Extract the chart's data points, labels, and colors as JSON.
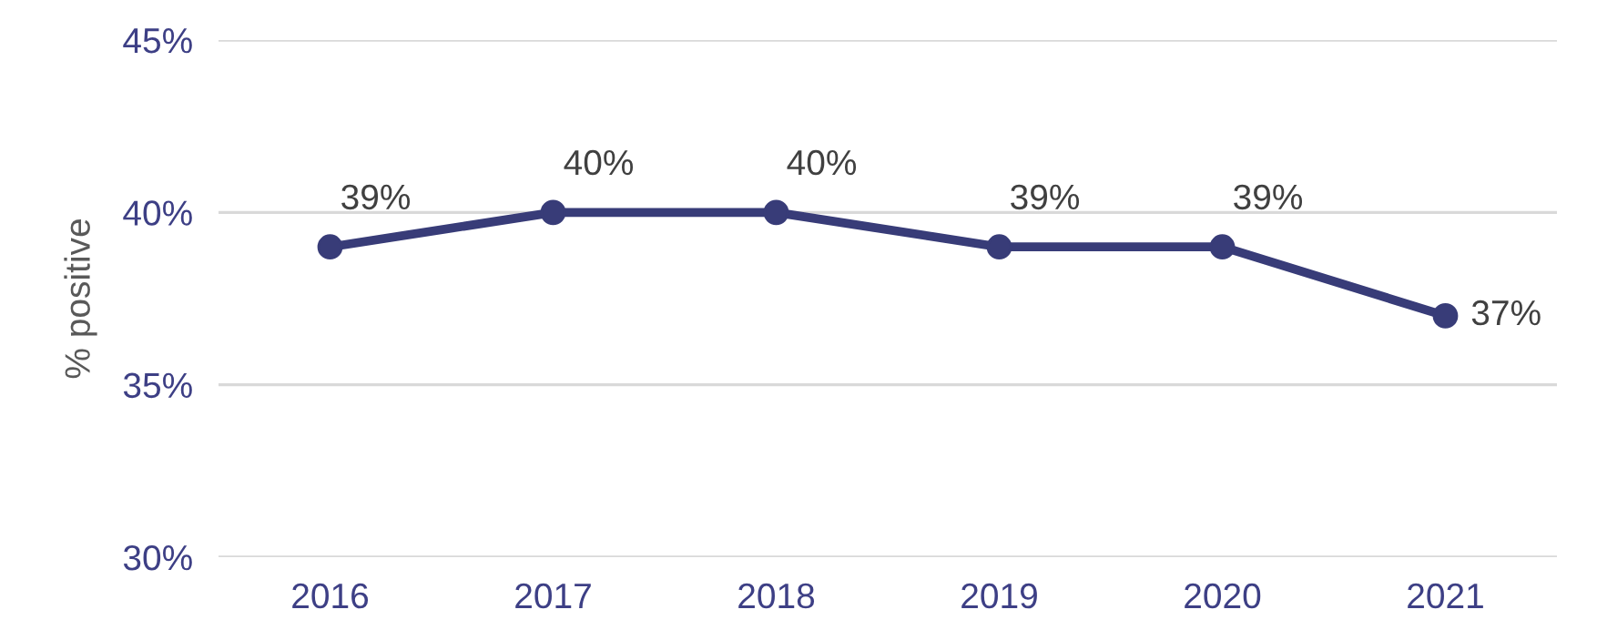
{
  "chart_data": {
    "type": "line",
    "ylabel": "% positive",
    "categories": [
      "2016",
      "2017",
      "2018",
      "2019",
      "2020",
      "2021"
    ],
    "series": [
      {
        "color": "#383c78",
        "values": [
          39,
          40,
          40,
          39,
          39,
          37
        ],
        "value_labels": [
          "39%",
          "40%",
          "40%",
          "39%",
          "39%",
          "37%"
        ]
      }
    ],
    "ylim": [
      30,
      45
    ],
    "yticks": [
      {
        "value": 30,
        "label": "30%"
      },
      {
        "value": 35,
        "label": "35%"
      },
      {
        "value": 40,
        "label": "40%"
      },
      {
        "value": 45,
        "label": "45%"
      }
    ],
    "grid": "y",
    "marker": "circle",
    "line_style": "solid",
    "legend": false
  }
}
